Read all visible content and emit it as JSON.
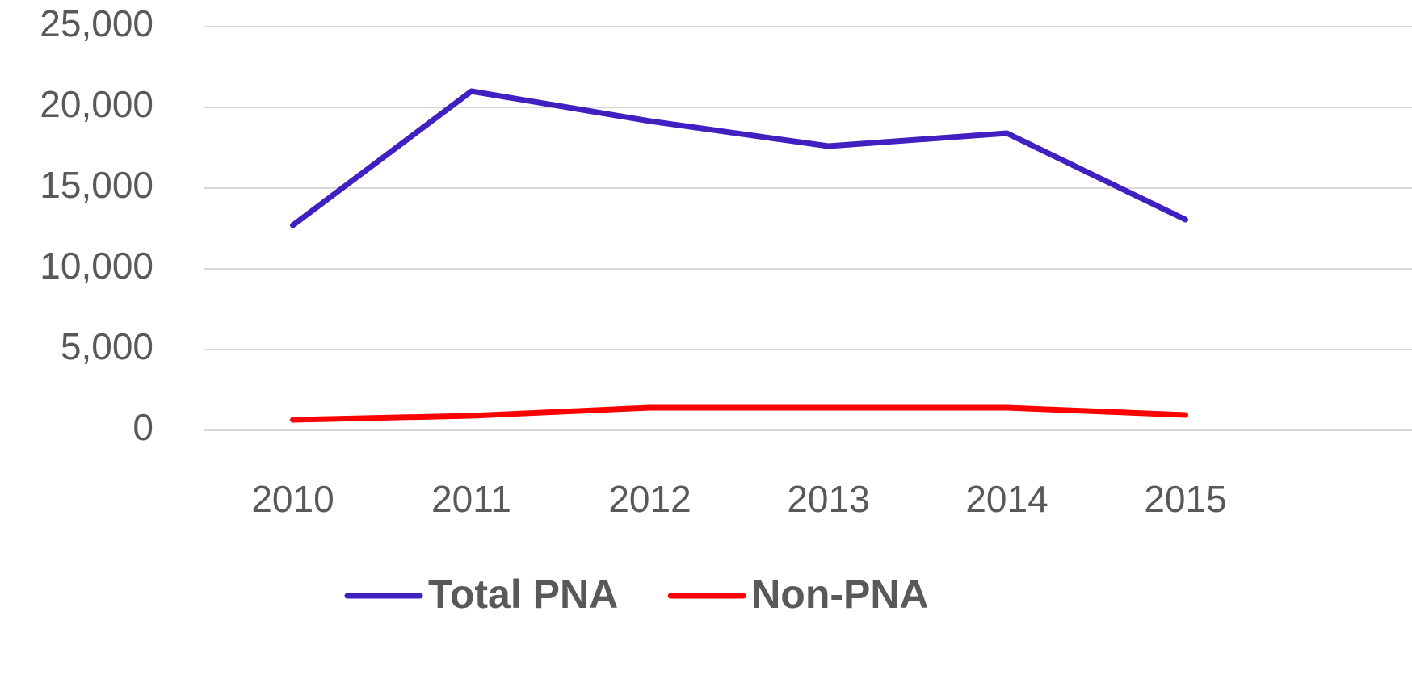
{
  "chart_data": {
    "type": "line",
    "categories": [
      "2010",
      "2011",
      "2012",
      "2013",
      "2014",
      "2015"
    ],
    "series": [
      {
        "name": "Total PNA",
        "color": "#4020c0",
        "values": [
          12700,
          21000,
          19150,
          17600,
          18400,
          13050
        ]
      },
      {
        "name": "Non-PNA",
        "color": "#ff0000",
        "values": [
          650,
          900,
          1400,
          1400,
          1400,
          950
        ]
      }
    ],
    "ylim": [
      0,
      25000
    ],
    "yticks": [
      0,
      {
        "value": 5000,
        "label": "5,000"
      },
      {
        "value": 10000,
        "label": "10,000"
      },
      {
        "value": 15000,
        "label": "15,000"
      },
      {
        "value": 20000,
        "label": "20,000"
      },
      {
        "value": 25000,
        "label": "25,000"
      }
    ],
    "grid": true,
    "legend": "bottom"
  }
}
